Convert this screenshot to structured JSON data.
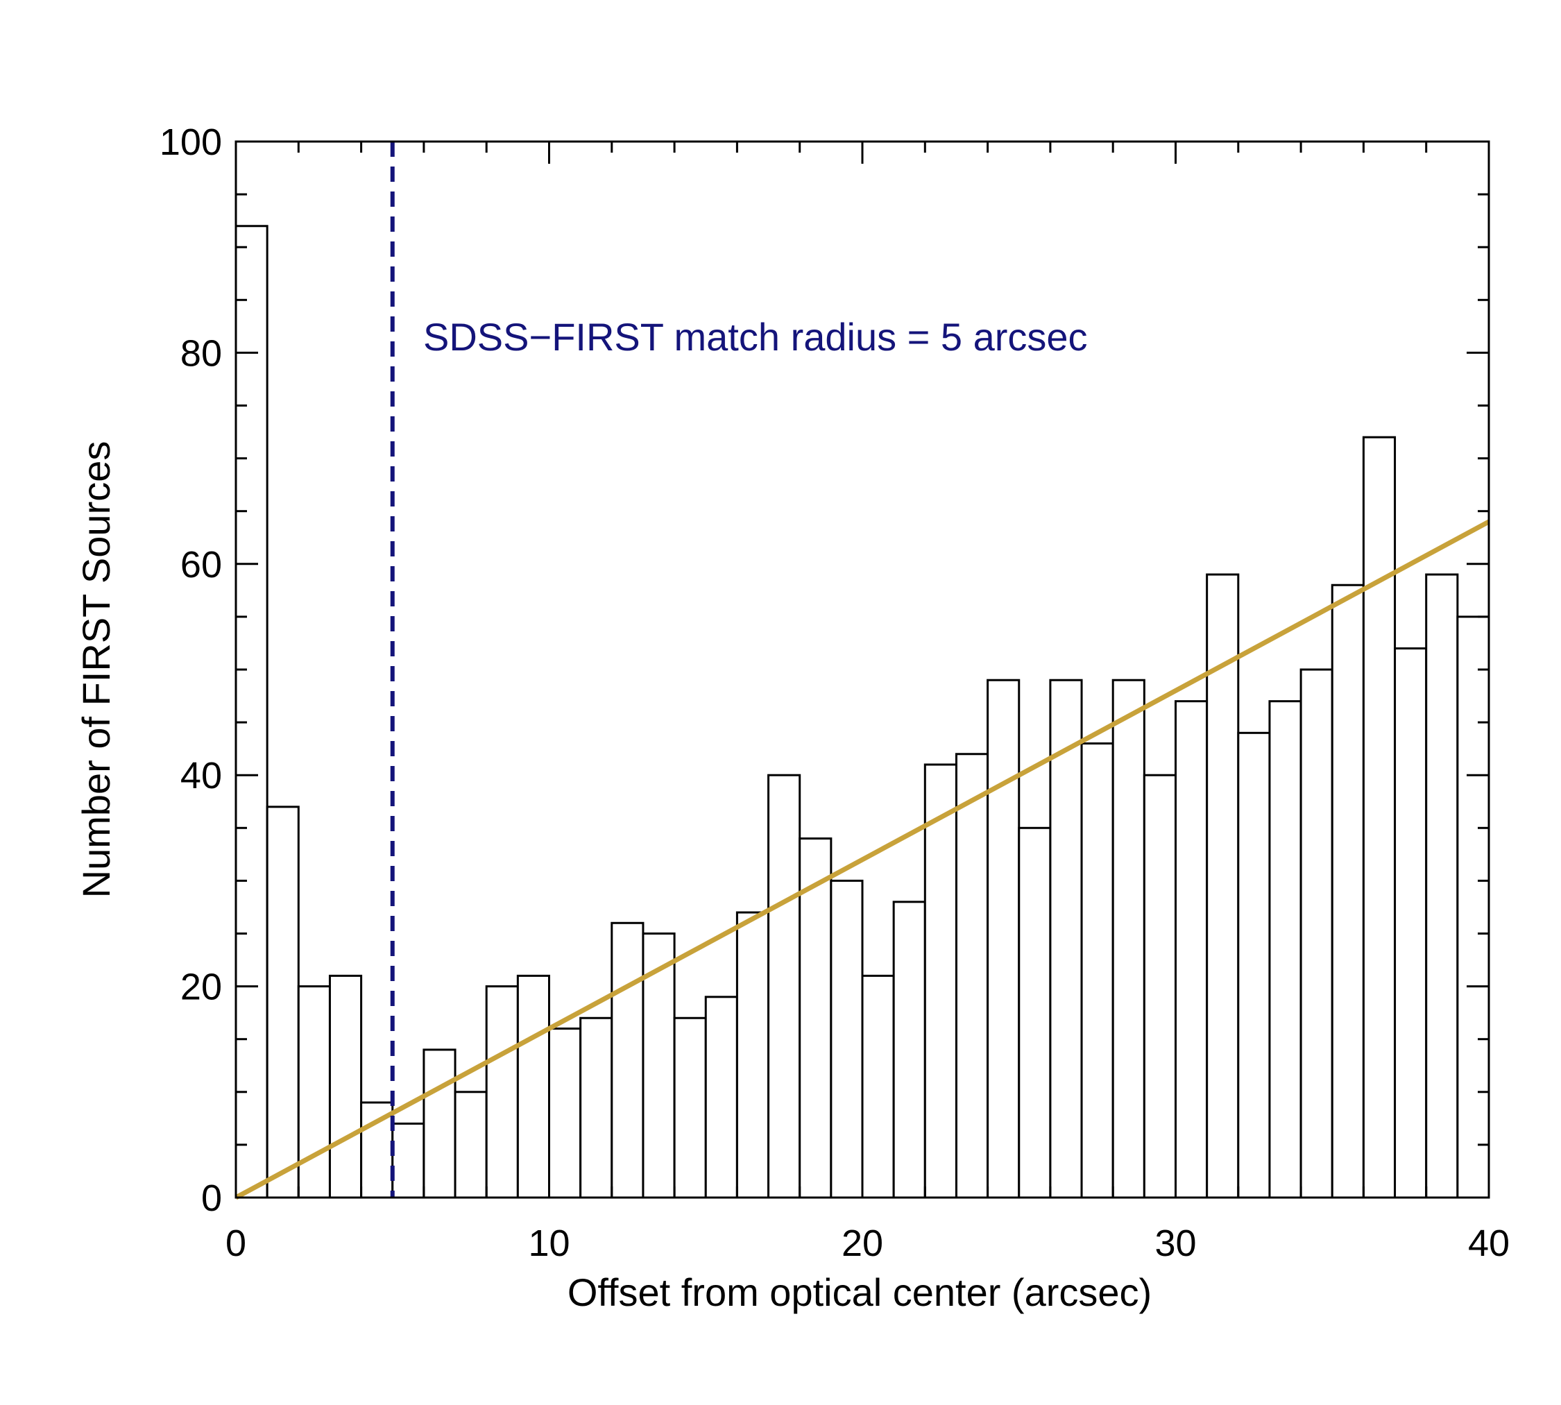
{
  "chart_data": {
    "type": "bar",
    "title": "",
    "xlabel": "Offset from optical center (arcsec)",
    "ylabel": "Number of FIRST Sources",
    "xlim": [
      0,
      40
    ],
    "ylim": [
      0,
      100
    ],
    "x_ticks": [
      "0",
      "10",
      "20",
      "30",
      "40"
    ],
    "y_ticks": [
      "0",
      "20",
      "40",
      "60",
      "80",
      "100"
    ],
    "bin_width": 1,
    "bin_starts": [
      0,
      1,
      2,
      3,
      4,
      5,
      6,
      7,
      8,
      9,
      10,
      11,
      12,
      13,
      14,
      15,
      16,
      17,
      18,
      19,
      20,
      21,
      22,
      23,
      24,
      25,
      26,
      27,
      28,
      29,
      30,
      31,
      32,
      33,
      34,
      35,
      36,
      37,
      38,
      39
    ],
    "values": [
      92,
      37,
      20,
      21,
      9,
      7,
      14,
      10,
      20,
      21,
      16,
      17,
      26,
      25,
      17,
      19,
      27,
      40,
      34,
      30,
      21,
      28,
      41,
      42,
      49,
      35,
      49,
      43,
      49,
      40,
      47,
      59,
      44,
      47,
      50,
      58,
      72,
      52,
      59,
      55
    ],
    "fit_line": {
      "x": [
        0,
        40
      ],
      "y": [
        0,
        64
      ],
      "color": "#c8a23a"
    },
    "threshold_line": {
      "x": 5,
      "color": "#14147a",
      "style": "dashed"
    },
    "annotation": {
      "text": "SDSS−FIRST match radius = 5 arcsec",
      "color": "#14147a"
    },
    "bar_fill": "#ffffff",
    "bar_edge": "#000000",
    "grid": false,
    "legend": "none"
  }
}
